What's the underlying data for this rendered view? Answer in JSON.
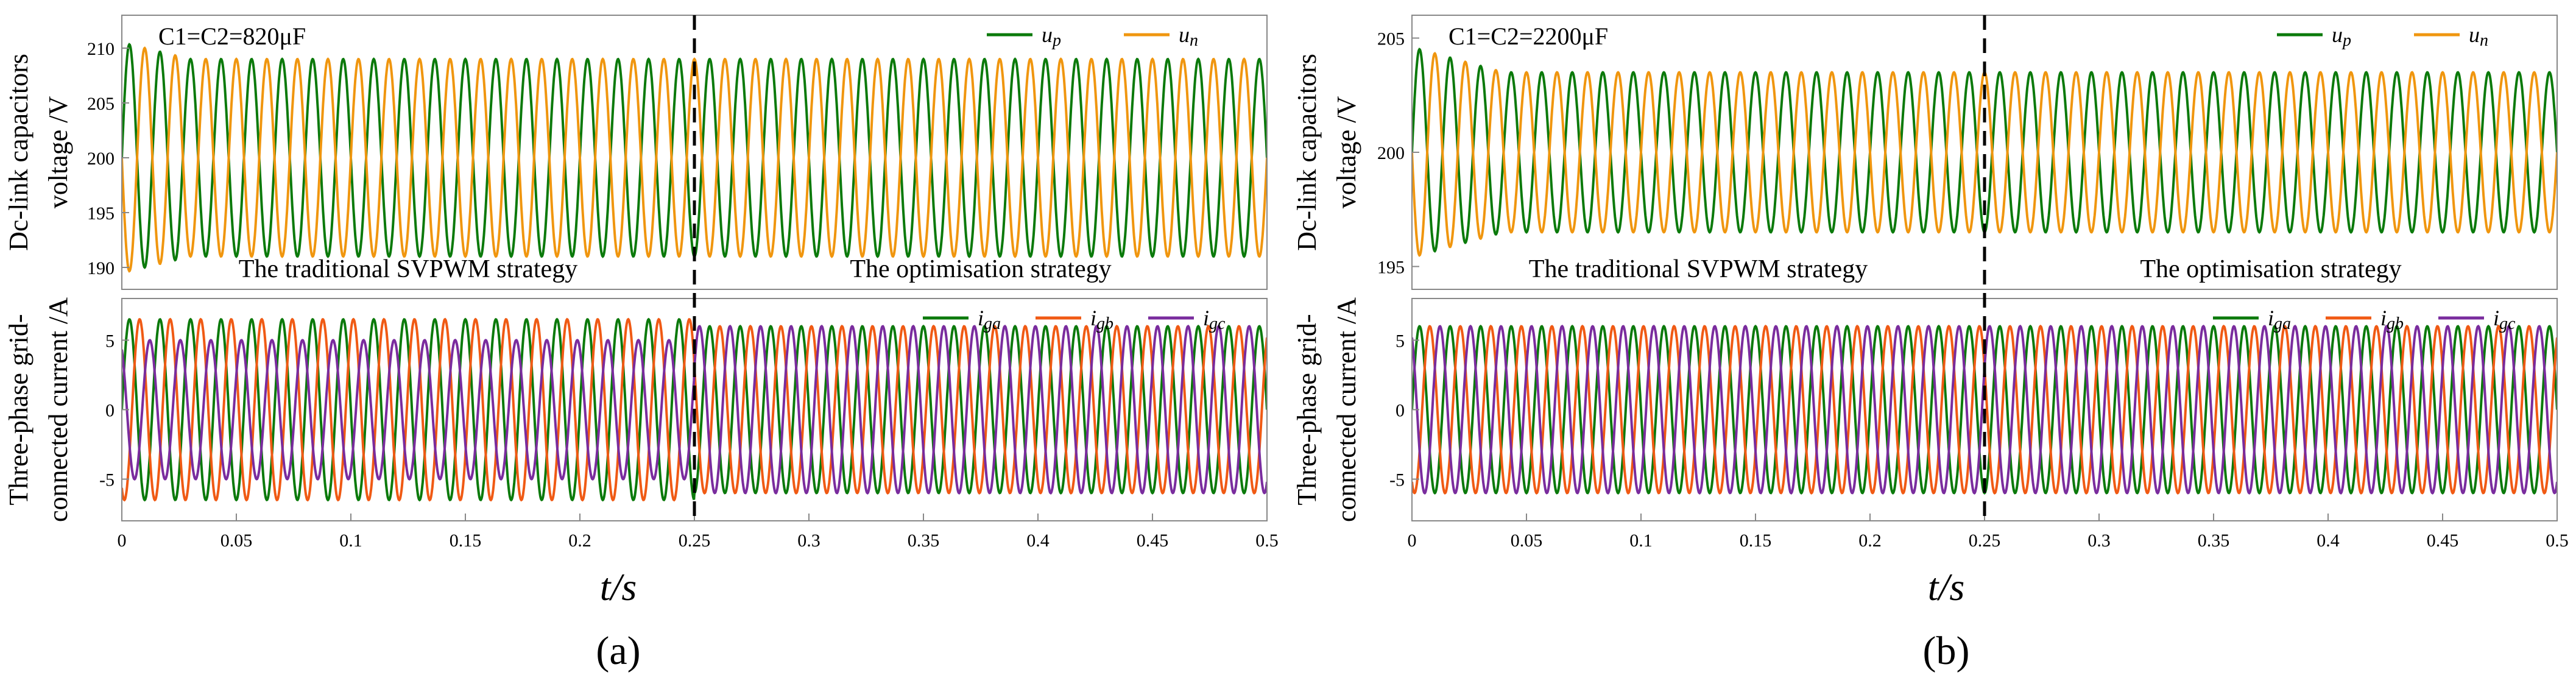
{
  "colors": {
    "up": "#0b7a0b",
    "un": "#f0960f",
    "iga": "#0b7a0b",
    "igb": "#f05a14",
    "igc": "#7a2c9e",
    "frame": "#888888",
    "text": "#000000"
  },
  "chart_data": [
    {
      "panel_label": "(a)",
      "xlabel": "t/s",
      "xlim": [
        0,
        0.5
      ],
      "xticks": [
        "0",
        "0.05",
        "0.1",
        "0.15",
        "0.2",
        "0.25",
        "0.3",
        "0.35",
        "0.4",
        "0.45",
        "0.5"
      ],
      "switch_time": 0.25,
      "plots": [
        {
          "type": "line",
          "ylabel_lines": [
            "Dc-link capacitors",
            "voltage /V"
          ],
          "ylim": [
            188,
            213
          ],
          "yticks": [
            190,
            195,
            200,
            205,
            210
          ],
          "capacitance_label": "C1=C2=820μF",
          "annotations": [
            "The traditional SVPWM strategy",
            "The optimisation strategy"
          ],
          "legend": [
            {
              "name": "u",
              "sub": "p"
            },
            {
              "name": "u",
              "sub": "n"
            }
          ],
          "series": [
            {
              "name": "up",
              "color_key": "up",
              "center": 200,
              "freq_hz": 75,
              "phase": 0,
              "amp_before": 9,
              "amp_after": 9,
              "peak_start": 10.5,
              "settle_s": 0.03
            },
            {
              "name": "un",
              "color_key": "un",
              "center": 200,
              "freq_hz": 75,
              "phase": 3.1416,
              "amp_before": 9,
              "amp_after": 9,
              "peak_start": 10.5,
              "settle_s": 0.03
            }
          ]
        },
        {
          "type": "line",
          "ylabel_lines": [
            "Three-phase grid-",
            "connected current /A"
          ],
          "ylim": [
            -8,
            8
          ],
          "yticks": [
            -5,
            0,
            5
          ],
          "legend": [
            {
              "name": "i",
              "sub": "ga"
            },
            {
              "name": "i",
              "sub": "gb"
            },
            {
              "name": "i",
              "sub": "gc"
            }
          ],
          "series": [
            {
              "name": "iga",
              "color_key": "iga",
              "center": 0,
              "freq_hz": 75,
              "phase": 0,
              "amp_before": 6.5,
              "amp_after": 6.0,
              "peak_start": 6.5,
              "settle_s": 0.0
            },
            {
              "name": "igb",
              "color_key": "igb",
              "center": 0,
              "freq_hz": 75,
              "phase": -2.0944,
              "amp_before": 6.5,
              "amp_after": 6.0,
              "peak_start": 6.5,
              "settle_s": 0.0
            },
            {
              "name": "igc",
              "color_key": "igc",
              "center": 0,
              "freq_hz": 75,
              "phase": 2.0944,
              "amp_before": 5.0,
              "amp_after": 6.0,
              "peak_start": 5.0,
              "settle_s": 0.0
            }
          ]
        }
      ]
    },
    {
      "panel_label": "(b)",
      "xlabel": "t/s",
      "xlim": [
        0,
        0.5
      ],
      "xticks": [
        "0",
        "0.05",
        "0.1",
        "0.15",
        "0.2",
        "0.25",
        "0.3",
        "0.35",
        "0.4",
        "0.45",
        "0.5"
      ],
      "switch_time": 0.25,
      "plots": [
        {
          "type": "line",
          "ylabel_lines": [
            "Dc-link capacitors",
            "voltage /V"
          ],
          "ylim": [
            194,
            206
          ],
          "yticks": [
            195,
            200,
            205
          ],
          "capacitance_label": "C1=C2=2200μF",
          "annotations": [
            "The traditional SVPWM strategy",
            "The optimisation strategy"
          ],
          "legend": [
            {
              "name": "u",
              "sub": "p"
            },
            {
              "name": "u",
              "sub": "n"
            }
          ],
          "series": [
            {
              "name": "up",
              "color_key": "up",
              "center": 200,
              "freq_hz": 75,
              "phase": 0,
              "amp_before": 3.5,
              "amp_after": 3.5,
              "peak_start": 4.6,
              "settle_s": 0.04
            },
            {
              "name": "un",
              "color_key": "un",
              "center": 200,
              "freq_hz": 75,
              "phase": 3.1416,
              "amp_before": 3.5,
              "amp_after": 3.5,
              "peak_start": 4.6,
              "settle_s": 0.04
            }
          ]
        },
        {
          "type": "line",
          "ylabel_lines": [
            "Three-phase grid-",
            "connected current /A"
          ],
          "ylim": [
            -8,
            8
          ],
          "yticks": [
            -5,
            0,
            5
          ],
          "legend": [
            {
              "name": "i",
              "sub": "ga"
            },
            {
              "name": "i",
              "sub": "gb"
            },
            {
              "name": "i",
              "sub": "gc"
            }
          ],
          "series": [
            {
              "name": "iga",
              "color_key": "iga",
              "center": 0,
              "freq_hz": 75,
              "phase": 0,
              "amp_before": 6.0,
              "amp_after": 6.0,
              "peak_start": 6.0,
              "settle_s": 0.0
            },
            {
              "name": "igb",
              "color_key": "igb",
              "center": 0,
              "freq_hz": 75,
              "phase": -2.0944,
              "amp_before": 6.0,
              "amp_after": 6.0,
              "peak_start": 6.0,
              "settle_s": 0.0
            },
            {
              "name": "igc",
              "color_key": "igc",
              "center": 0,
              "freq_hz": 75,
              "phase": 2.0944,
              "amp_before": 6.0,
              "amp_after": 6.0,
              "peak_start": 6.0,
              "settle_s": 0.0
            }
          ]
        }
      ]
    }
  ]
}
